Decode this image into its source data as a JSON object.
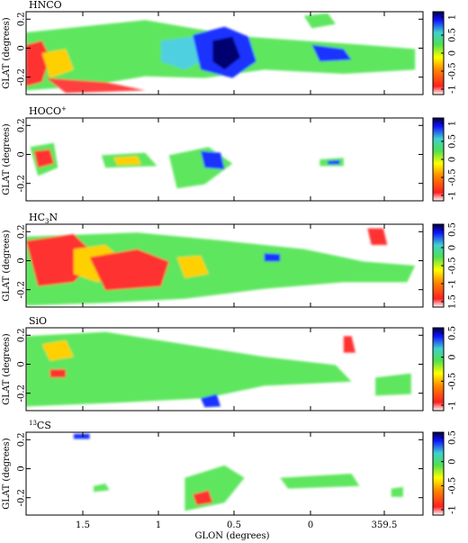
{
  "figure": {
    "xlabel": "GLON (degrees)",
    "ylabel": "GLAT (degrees)",
    "x_ticks": [
      "1.5",
      "1",
      "0.5",
      "0",
      "359.5"
    ],
    "y_ticks": [
      "0.2",
      "0",
      "-0.2"
    ]
  },
  "panels": [
    {
      "title_main": "HNCO",
      "title_sup": "",
      "title_sub": "",
      "title_tail": "",
      "colorbar_ticks": [
        "1",
        "0.5",
        "0",
        "-0.5",
        "-1"
      ]
    },
    {
      "title_main": "HOCO",
      "title_sup": "+",
      "title_sub": "",
      "title_tail": "",
      "colorbar_ticks": [
        "1",
        "0.5",
        "0",
        "-0.5",
        "-1"
      ]
    },
    {
      "title_main": "HC",
      "title_sup": "",
      "title_sub": "3",
      "title_tail": "N",
      "colorbar_ticks": [
        "0.5",
        "0",
        "-0.5",
        "-1",
        "1.5"
      ]
    },
    {
      "title_main": "SiO",
      "title_sup": "",
      "title_sub": "",
      "title_tail": "",
      "colorbar_ticks": [
        "0.5",
        "0",
        "-0.5",
        "-1"
      ]
    },
    {
      "title_main": "CS",
      "title_sup": "",
      "title_sub": "",
      "title_tail": "",
      "title_pre_sup": "13",
      "colorbar_ticks": [
        "0.5",
        "0",
        "-0.5",
        "-1"
      ]
    }
  ]
}
